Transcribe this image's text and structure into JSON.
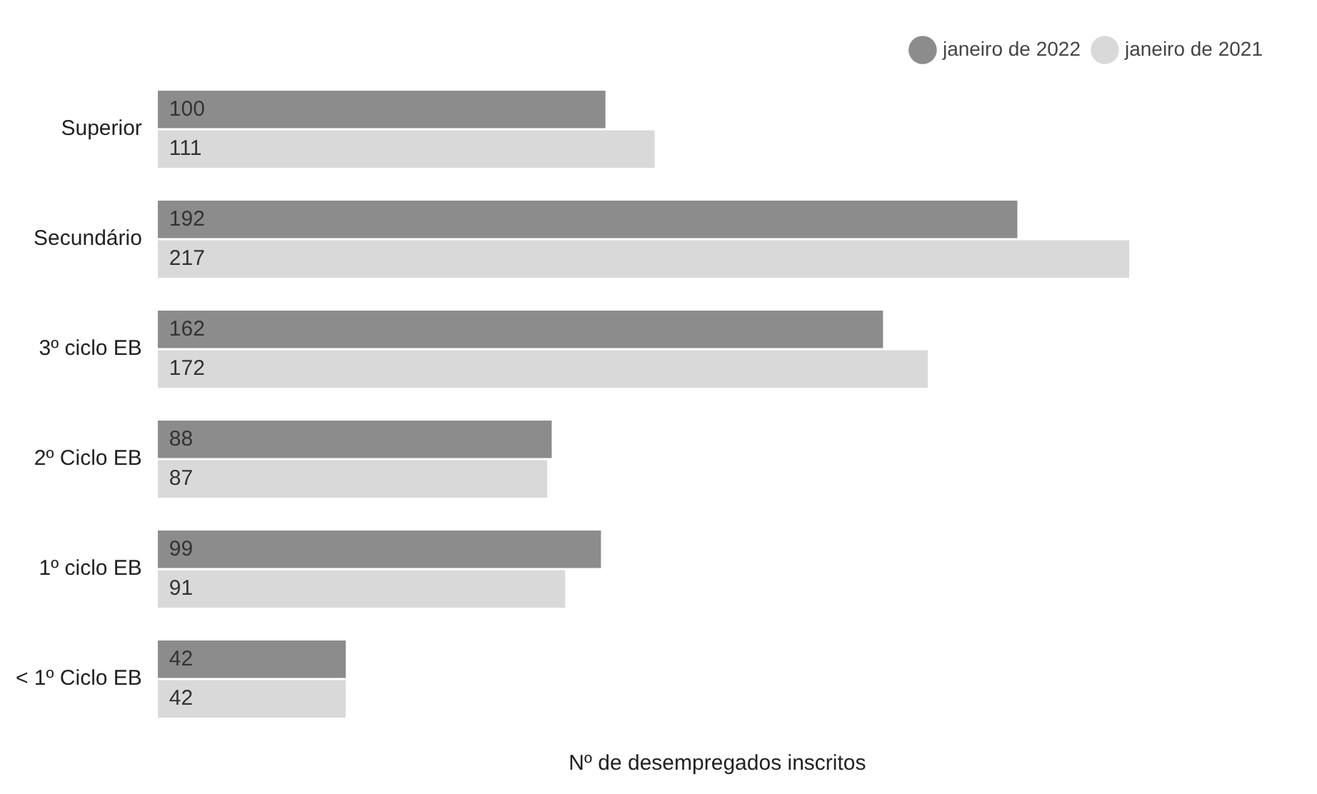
{
  "chart_data": {
    "type": "bar",
    "orientation": "horizontal",
    "xlabel": "Nº de desempregados inscritos",
    "categories": [
      "Superior",
      "Secundário",
      "3º ciclo EB",
      "2º Ciclo EB",
      "1º ciclo EB",
      "< 1º Ciclo EB"
    ],
    "series": [
      {
        "name": "janeiro de 2022",
        "color": "#8c8c8c",
        "values": [
          100,
          192,
          162,
          88,
          99,
          42
        ]
      },
      {
        "name": "janeiro de 2021",
        "color": "#d9d9d9",
        "values": [
          111,
          217,
          172,
          87,
          91,
          42
        ]
      }
    ],
    "data_labels": true,
    "legend": "top right",
    "grid": false,
    "tick_labels": "y"
  }
}
